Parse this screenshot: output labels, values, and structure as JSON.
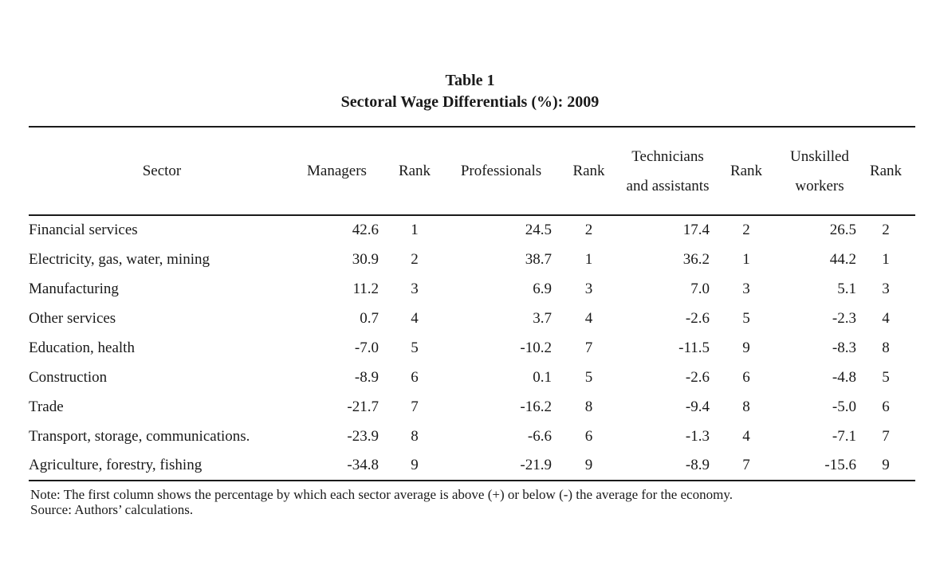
{
  "title": {
    "line1": "Table 1",
    "line2": "Sectoral Wage Differentials (%): 2009"
  },
  "table": {
    "columns": [
      "Sector",
      "Managers",
      "Rank",
      "Professionals",
      "Rank",
      "Technicians and assistants",
      "Rank",
      "Unskilled workers",
      "Rank"
    ],
    "rows": [
      {
        "sector": "Financial services",
        "cells": [
          "42.6",
          "1",
          "24.5",
          "2",
          "17.4",
          "2",
          "26.5",
          "2"
        ]
      },
      {
        "sector": "Electricity, gas, water, mining",
        "cells": [
          "30.9",
          "2",
          "38.7",
          "1",
          "36.2",
          "1",
          "44.2",
          "1"
        ]
      },
      {
        "sector": "Manufacturing",
        "cells": [
          "11.2",
          "3",
          "6.9",
          "3",
          "7.0",
          "3",
          "5.1",
          "3"
        ]
      },
      {
        "sector": "Other services",
        "cells": [
          "0.7",
          "4",
          "3.7",
          "4",
          "-2.6",
          "5",
          "-2.3",
          "4"
        ]
      },
      {
        "sector": "Education, health",
        "cells": [
          "-7.0",
          "5",
          "-10.2",
          "7",
          "-11.5",
          "9",
          "-8.3",
          "8"
        ]
      },
      {
        "sector": "Construction",
        "cells": [
          "-8.9",
          "6",
          "0.1",
          "5",
          "-2.6",
          "6",
          "-4.8",
          "5"
        ]
      },
      {
        "sector": "Trade",
        "cells": [
          "-21.7",
          "7",
          "-16.2",
          "8",
          "-9.4",
          "8",
          "-5.0",
          "6"
        ]
      },
      {
        "sector": "Transport, storage, communications.",
        "cells": [
          "-23.9",
          "8",
          "-6.6",
          "6",
          "-1.3",
          "4",
          "-7.1",
          "7"
        ]
      },
      {
        "sector": "Agriculture, forestry, fishing",
        "cells": [
          "-34.8",
          "9",
          "-21.9",
          "9",
          "-8.9",
          "7",
          "-15.6",
          "9"
        ]
      }
    ]
  },
  "notes": {
    "note": "Note: The first column shows the percentage by which each sector average is above (+) or below (-) the average for the economy.",
    "source": "Source: Authors’ calculations."
  }
}
